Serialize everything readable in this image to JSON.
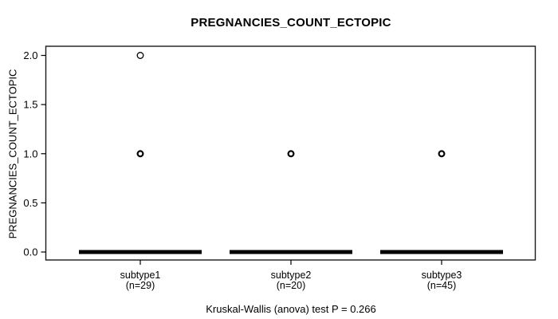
{
  "window": {
    "background": "#ffffff"
  },
  "chart_data": {
    "type": "boxplot",
    "title": "PREGNANCIES_COUNT_ECTOPIC",
    "ylabel": "PREGNANCIES_COUNT_ECTOPIC",
    "footer": "Kruskal-Wallis (anova) test P = 0.266",
    "test": {
      "name": "Kruskal-Wallis (anova) test",
      "p_value": 0.266
    },
    "ylim": [
      0,
      2
    ],
    "yticks": [
      "0.0",
      "0.5",
      "1.0",
      "1.5",
      "2.0"
    ],
    "grid": false,
    "legend": null,
    "colors": {
      "line": "#000000",
      "border": "#1a1a1a",
      "text": "#000000",
      "background": "#ffffff"
    },
    "groups": [
      {
        "label": "subtype1",
        "sublabel": "(n=29)",
        "n": 29,
        "whisker_low": 0,
        "q1": 0,
        "median": 0,
        "q3": 0,
        "whisker_high": 0,
        "outliers": [
          {
            "value": 1.0,
            "ring": "heavy"
          },
          {
            "value": 2.0,
            "ring": "light"
          }
        ]
      },
      {
        "label": "subtype2",
        "sublabel": "(n=20)",
        "n": 20,
        "whisker_low": 0,
        "q1": 0,
        "median": 0,
        "q3": 0,
        "whisker_high": 0,
        "outliers": [
          {
            "value": 1.0,
            "ring": "heavy"
          }
        ]
      },
      {
        "label": "subtype3",
        "sublabel": "(n=45)",
        "n": 45,
        "whisker_low": 0,
        "q1": 0,
        "median": 0,
        "q3": 0,
        "whisker_high": 0,
        "outliers": [
          {
            "value": 1.0,
            "ring": "heavy"
          }
        ]
      }
    ]
  }
}
